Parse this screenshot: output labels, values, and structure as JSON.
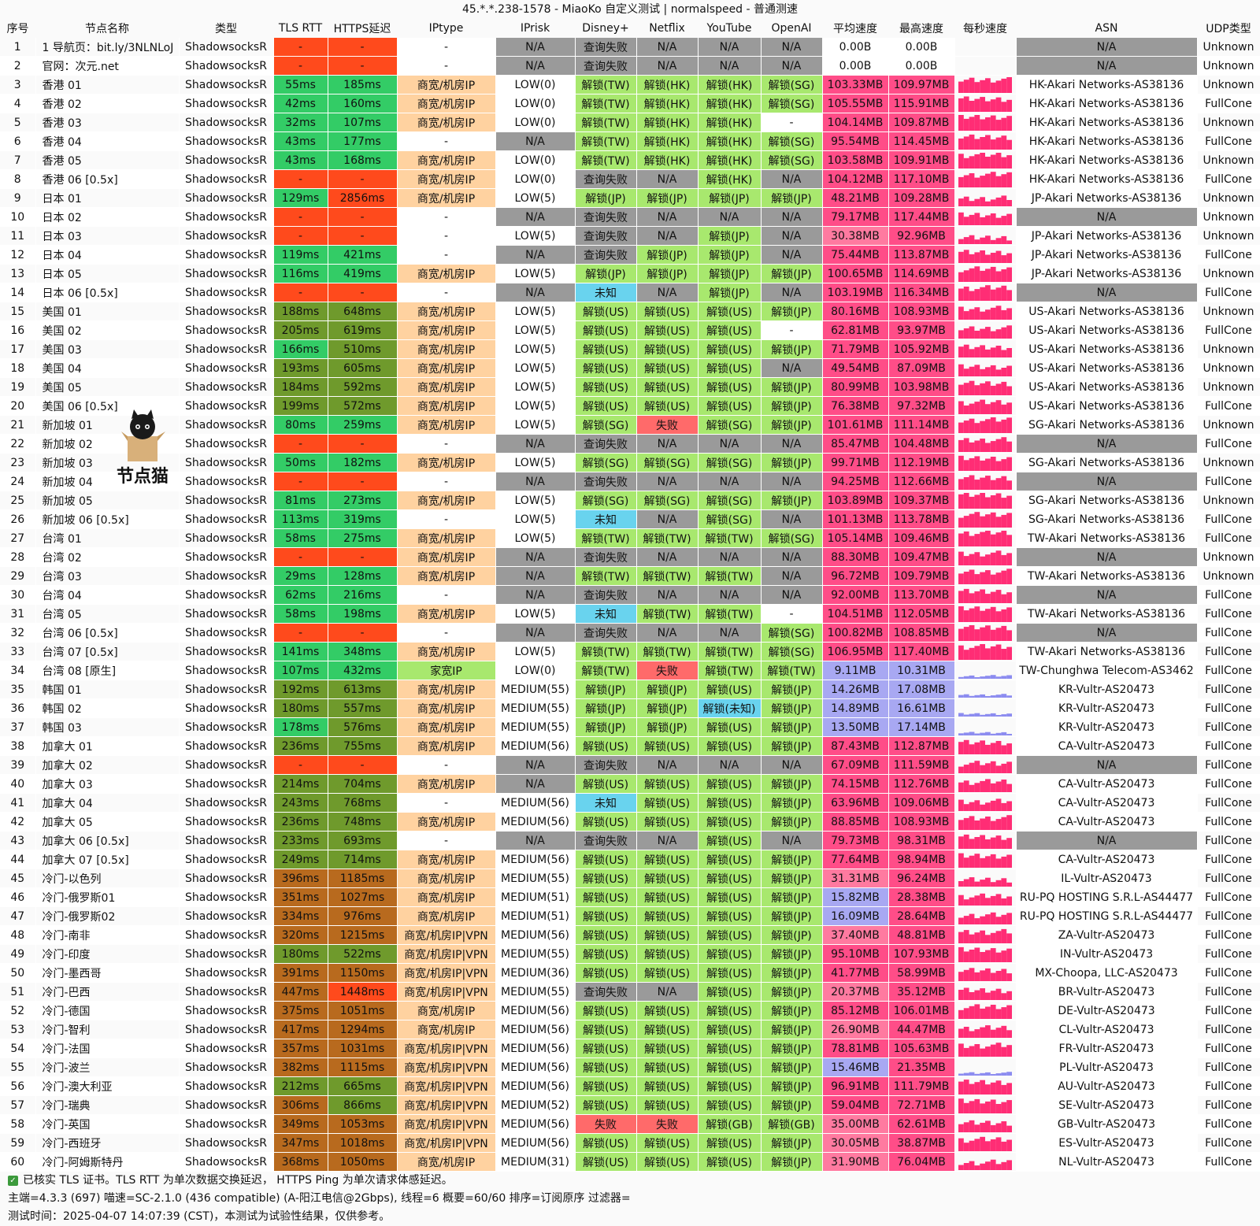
{
  "title": "45.*.*.238-1578 - MiaoKo 自定义测试 | normalspeed - 普通测速",
  "columns": [
    "序号",
    "节点名称",
    "类型",
    "TLS RTT",
    "HTTPS延迟",
    "IPtype",
    "IPrisk",
    "Disney+",
    "Netflix",
    "YouTube",
    "OpenAI",
    "平均速度",
    "最高速度",
    "每秒速度",
    "ASN",
    "UDP类型"
  ],
  "colors": {
    "red": "#ff4a1c",
    "green": "#33cc66",
    "olive": "#6f9a2c",
    "brown": "#b86a1e",
    "orange": "#ffd2a0",
    "gray": "#9a9a9a",
    "lightgreen": "#a8e86e",
    "pink": "#ff4d88",
    "blue": "#69d3ee",
    "lavender": "#a8a8f2",
    "lightred": "#ff6a6a",
    "white": "#ffffff",
    "lightpink": "#ff7aa0"
  },
  "mascot": {
    "label": "节点猫"
  },
  "rows": [
    [
      "1",
      "1 导航页：bit.ly/3NLNLoJ",
      "ShadowsocksR",
      "-",
      "-",
      "-",
      "N/A",
      "查询失败",
      "N/A",
      "N/A",
      "N/A",
      "0.00B",
      "0.00B",
      "",
      "N/A",
      "Unknown"
    ],
    [
      "2",
      "官网：次元.net",
      "ShadowsocksR",
      "-",
      "-",
      "-",
      "N/A",
      "查询失败",
      "N/A",
      "N/A",
      "N/A",
      "0.00B",
      "0.00B",
      "",
      "N/A",
      "Unknown"
    ],
    [
      "3",
      "香港 01",
      "ShadowsocksR",
      "55ms",
      "185ms",
      "商宽/机房IP",
      "LOW(0)",
      "解锁(TW)",
      "解锁(HK)",
      "解锁(HK)",
      "解锁(SG)",
      "103.33MB",
      "109.97MB",
      "",
      "HK-Akari Networks-AS38136",
      "Unknown"
    ],
    [
      "4",
      "香港 02",
      "ShadowsocksR",
      "42ms",
      "160ms",
      "商宽/机房IP",
      "LOW(0)",
      "解锁(TW)",
      "解锁(HK)",
      "解锁(HK)",
      "解锁(SG)",
      "105.55MB",
      "115.91MB",
      "",
      "HK-Akari Networks-AS38136",
      "FullCone"
    ],
    [
      "5",
      "香港 03",
      "ShadowsocksR",
      "32ms",
      "107ms",
      "商宽/机房IP",
      "LOW(0)",
      "解锁(TW)",
      "解锁(HK)",
      "解锁(HK)",
      "-",
      "104.14MB",
      "109.87MB",
      "",
      "HK-Akari Networks-AS38136",
      "Unknown"
    ],
    [
      "6",
      "香港 04",
      "ShadowsocksR",
      "43ms",
      "177ms",
      "-",
      "N/A",
      "解锁(TW)",
      "解锁(HK)",
      "解锁(HK)",
      "解锁(SG)",
      "95.54MB",
      "114.45MB",
      "",
      "HK-Akari Networks-AS38136",
      "FullCone"
    ],
    [
      "7",
      "香港 05",
      "ShadowsocksR",
      "43ms",
      "168ms",
      "商宽/机房IP",
      "LOW(0)",
      "解锁(TW)",
      "解锁(HK)",
      "解锁(HK)",
      "解锁(SG)",
      "103.58MB",
      "109.91MB",
      "",
      "HK-Akari Networks-AS38136",
      "Unknown"
    ],
    [
      "8",
      "香港 06 [0.5x]",
      "ShadowsocksR",
      "-",
      "-",
      "商宽/机房IP",
      "LOW(0)",
      "查询失败",
      "N/A",
      "解锁(HK)",
      "N/A",
      "104.12MB",
      "117.10MB",
      "",
      "HK-Akari Networks-AS38136",
      "FullCone"
    ],
    [
      "9",
      "日本 01",
      "ShadowsocksR",
      "129ms",
      "2856ms",
      "商宽/机房IP",
      "LOW(5)",
      "解锁(JP)",
      "解锁(JP)",
      "解锁(JP)",
      "解锁(JP)",
      "48.21MB",
      "109.28MB",
      "",
      "JP-Akari Networks-AS38136",
      "Unknown"
    ],
    [
      "10",
      "日本 02",
      "ShadowsocksR",
      "-",
      "-",
      "-",
      "N/A",
      "查询失败",
      "N/A",
      "N/A",
      "N/A",
      "79.17MB",
      "117.44MB",
      "",
      "N/A",
      "Unknown"
    ],
    [
      "11",
      "日本 03",
      "ShadowsocksR",
      "-",
      "-",
      "-",
      "LOW(5)",
      "查询失败",
      "N/A",
      "解锁(JP)",
      "N/A",
      "30.38MB",
      "92.96MB",
      "",
      "JP-Akari Networks-AS38136",
      "Unknown"
    ],
    [
      "12",
      "日本 04",
      "ShadowsocksR",
      "119ms",
      "421ms",
      "-",
      "N/A",
      "查询失败",
      "解锁(JP)",
      "解锁(JP)",
      "N/A",
      "75.44MB",
      "113.87MB",
      "",
      "JP-Akari Networks-AS38136",
      "FullCone"
    ],
    [
      "13",
      "日本 05",
      "ShadowsocksR",
      "116ms",
      "419ms",
      "商宽/机房IP",
      "LOW(5)",
      "解锁(JP)",
      "解锁(JP)",
      "解锁(JP)",
      "解锁(JP)",
      "100.65MB",
      "114.69MB",
      "",
      "JP-Akari Networks-AS38136",
      "Unknown"
    ],
    [
      "14",
      "日本 06 [0.5x]",
      "ShadowsocksR",
      "-",
      "-",
      "-",
      "N/A",
      "未知",
      "N/A",
      "解锁(JP)",
      "N/A",
      "103.19MB",
      "116.34MB",
      "",
      "N/A",
      "FullCone"
    ],
    [
      "15",
      "美国 01",
      "ShadowsocksR",
      "188ms",
      "648ms",
      "商宽/机房IP",
      "LOW(5)",
      "解锁(US)",
      "解锁(US)",
      "解锁(US)",
      "解锁(JP)",
      "80.16MB",
      "108.93MB",
      "",
      "US-Akari Networks-AS38136",
      "Unknown"
    ],
    [
      "16",
      "美国 02",
      "ShadowsocksR",
      "205ms",
      "619ms",
      "商宽/机房IP",
      "LOW(5)",
      "解锁(US)",
      "解锁(US)",
      "解锁(US)",
      "-",
      "62.81MB",
      "93.97MB",
      "",
      "US-Akari Networks-AS38136",
      "FullCone"
    ],
    [
      "17",
      "美国 03",
      "ShadowsocksR",
      "166ms",
      "510ms",
      "商宽/机房IP",
      "LOW(5)",
      "解锁(US)",
      "解锁(US)",
      "解锁(US)",
      "解锁(JP)",
      "71.79MB",
      "105.92MB",
      "",
      "US-Akari Networks-AS38136",
      "Unknown"
    ],
    [
      "18",
      "美国 04",
      "ShadowsocksR",
      "193ms",
      "605ms",
      "商宽/机房IP",
      "LOW(5)",
      "解锁(US)",
      "解锁(US)",
      "解锁(US)",
      "N/A",
      "49.54MB",
      "87.09MB",
      "",
      "US-Akari Networks-AS38136",
      "Unknown"
    ],
    [
      "19",
      "美国 05",
      "ShadowsocksR",
      "184ms",
      "592ms",
      "商宽/机房IP",
      "LOW(5)",
      "解锁(US)",
      "解锁(US)",
      "解锁(US)",
      "解锁(JP)",
      "80.99MB",
      "103.98MB",
      "",
      "US-Akari Networks-AS38136",
      "Unknown"
    ],
    [
      "20",
      "美国 06 [0.5x]",
      "ShadowsocksR",
      "199ms",
      "572ms",
      "商宽/机房IP",
      "LOW(5)",
      "解锁(US)",
      "解锁(US)",
      "解锁(US)",
      "解锁(JP)",
      "76.38MB",
      "97.32MB",
      "",
      "US-Akari Networks-AS38136",
      "FullCone"
    ],
    [
      "21",
      "新加坡 01",
      "ShadowsocksR",
      "80ms",
      "259ms",
      "商宽/机房IP",
      "LOW(5)",
      "解锁(SG)",
      "失败",
      "解锁(SG)",
      "解锁(JP)",
      "101.61MB",
      "111.14MB",
      "",
      "SG-Akari Networks-AS38136",
      "Unknown"
    ],
    [
      "22",
      "新加坡 02",
      "ShadowsocksR",
      "-",
      "-",
      "-",
      "N/A",
      "查询失败",
      "N/A",
      "N/A",
      "N/A",
      "85.47MB",
      "104.48MB",
      "",
      "N/A",
      "FullCone"
    ],
    [
      "23",
      "新加坡 03",
      "ShadowsocksR",
      "50ms",
      "182ms",
      "商宽/机房IP",
      "LOW(5)",
      "解锁(SG)",
      "解锁(SG)",
      "解锁(SG)",
      "解锁(JP)",
      "99.71MB",
      "112.19MB",
      "",
      "SG-Akari Networks-AS38136",
      "Unknown"
    ],
    [
      "24",
      "新加坡 04",
      "ShadowsocksR",
      "-",
      "-",
      "-",
      "N/A",
      "查询失败",
      "N/A",
      "N/A",
      "N/A",
      "94.25MB",
      "112.66MB",
      "",
      "N/A",
      "FullCone"
    ],
    [
      "25",
      "新加坡 05",
      "ShadowsocksR",
      "81ms",
      "273ms",
      "商宽/机房IP",
      "LOW(5)",
      "解锁(SG)",
      "解锁(SG)",
      "解锁(SG)",
      "解锁(JP)",
      "103.89MB",
      "109.37MB",
      "",
      "SG-Akari Networks-AS38136",
      "Unknown"
    ],
    [
      "26",
      "新加坡 06 [0.5x]",
      "ShadowsocksR",
      "113ms",
      "319ms",
      "-",
      "LOW(5)",
      "未知",
      "N/A",
      "解锁(SG)",
      "N/A",
      "101.13MB",
      "113.78MB",
      "",
      "SG-Akari Networks-AS38136",
      "FullCone"
    ],
    [
      "27",
      "台湾 01",
      "ShadowsocksR",
      "58ms",
      "275ms",
      "商宽/机房IP",
      "LOW(5)",
      "解锁(TW)",
      "解锁(TW)",
      "解锁(TW)",
      "解锁(SG)",
      "105.14MB",
      "109.46MB",
      "",
      "TW-Akari Networks-AS38136",
      "FullCone"
    ],
    [
      "28",
      "台湾 02",
      "ShadowsocksR",
      "-",
      "-",
      "商宽/机房IP",
      "N/A",
      "查询失败",
      "N/A",
      "N/A",
      "N/A",
      "88.30MB",
      "109.47MB",
      "",
      "N/A",
      "Unknown"
    ],
    [
      "29",
      "台湾 03",
      "ShadowsocksR",
      "29ms",
      "128ms",
      "商宽/机房IP",
      "N/A",
      "解锁(TW)",
      "解锁(TW)",
      "解锁(TW)",
      "N/A",
      "96.72MB",
      "109.79MB",
      "",
      "TW-Akari Networks-AS38136",
      "Unknown"
    ],
    [
      "30",
      "台湾 04",
      "ShadowsocksR",
      "62ms",
      "216ms",
      "-",
      "N/A",
      "查询失败",
      "N/A",
      "N/A",
      "N/A",
      "92.00MB",
      "113.70MB",
      "",
      "N/A",
      "FullCone"
    ],
    [
      "31",
      "台湾 05",
      "ShadowsocksR",
      "58ms",
      "198ms",
      "商宽/机房IP",
      "LOW(5)",
      "未知",
      "解锁(TW)",
      "解锁(TW)",
      "-",
      "104.51MB",
      "112.05MB",
      "",
      "TW-Akari Networks-AS38136",
      "FullCone"
    ],
    [
      "32",
      "台湾 06 [0.5x]",
      "ShadowsocksR",
      "-",
      "-",
      "-",
      "N/A",
      "查询失败",
      "N/A",
      "N/A",
      "解锁(SG)",
      "100.82MB",
      "108.85MB",
      "",
      "N/A",
      "FullCone"
    ],
    [
      "33",
      "台湾 07 [0.5x]",
      "ShadowsocksR",
      "141ms",
      "348ms",
      "商宽/机房IP",
      "LOW(5)",
      "解锁(TW)",
      "解锁(TW)",
      "解锁(TW)",
      "解锁(SG)",
      "106.95MB",
      "117.40MB",
      "",
      "TW-Akari Networks-AS38136",
      "FullCone"
    ],
    [
      "34",
      "台湾 08 [原生]",
      "ShadowsocksR",
      "107ms",
      "432ms",
      "家宽IP",
      "LOW(0)",
      "解锁(TW)",
      "失败",
      "解锁(TW)",
      "解锁(TW)",
      "9.11MB",
      "10.31MB",
      "",
      "TW-Chunghwa Telecom-AS3462",
      "FullCone"
    ],
    [
      "35",
      "韩国 01",
      "ShadowsocksR",
      "192ms",
      "613ms",
      "商宽/机房IP",
      "MEDIUM(55)",
      "解锁(JP)",
      "解锁(JP)",
      "解锁(US)",
      "解锁(JP)",
      "14.26MB",
      "17.08MB",
      "",
      "KR-Vultr-AS20473",
      "FullCone"
    ],
    [
      "36",
      "韩国 02",
      "ShadowsocksR",
      "180ms",
      "557ms",
      "商宽/机房IP",
      "MEDIUM(55)",
      "解锁(JP)",
      "解锁(JP)",
      "解锁(未知)",
      "解锁(JP)",
      "14.89MB",
      "16.61MB",
      "",
      "KR-Vultr-AS20473",
      "FullCone"
    ],
    [
      "37",
      "韩国 03",
      "ShadowsocksR",
      "178ms",
      "576ms",
      "商宽/机房IP",
      "MEDIUM(55)",
      "解锁(JP)",
      "解锁(JP)",
      "解锁(US)",
      "解锁(JP)",
      "13.50MB",
      "17.14MB",
      "",
      "KR-Vultr-AS20473",
      "FullCone"
    ],
    [
      "38",
      "加拿大 01",
      "ShadowsocksR",
      "236ms",
      "755ms",
      "商宽/机房IP",
      "MEDIUM(56)",
      "解锁(US)",
      "解锁(US)",
      "解锁(US)",
      "解锁(JP)",
      "87.43MB",
      "112.87MB",
      "",
      "CA-Vultr-AS20473",
      "FullCone"
    ],
    [
      "39",
      "加拿大 02",
      "ShadowsocksR",
      "-",
      "-",
      "-",
      "N/A",
      "查询失败",
      "N/A",
      "N/A",
      "N/A",
      "67.09MB",
      "111.59MB",
      "",
      "N/A",
      "FullCone"
    ],
    [
      "40",
      "加拿大 03",
      "ShadowsocksR",
      "214ms",
      "704ms",
      "商宽/机房IP",
      "N/A",
      "解锁(US)",
      "解锁(US)",
      "解锁(US)",
      "解锁(JP)",
      "74.15MB",
      "112.76MB",
      "",
      "CA-Vultr-AS20473",
      "FullCone"
    ],
    [
      "41",
      "加拿大 04",
      "ShadowsocksR",
      "243ms",
      "768ms",
      "-",
      "MEDIUM(56)",
      "未知",
      "解锁(US)",
      "解锁(US)",
      "解锁(JP)",
      "63.96MB",
      "109.06MB",
      "",
      "CA-Vultr-AS20473",
      "FullCone"
    ],
    [
      "42",
      "加拿大 05",
      "ShadowsocksR",
      "236ms",
      "748ms",
      "商宽/机房IP",
      "MEDIUM(56)",
      "解锁(US)",
      "解锁(US)",
      "解锁(US)",
      "解锁(JP)",
      "88.85MB",
      "108.93MB",
      "",
      "CA-Vultr-AS20473",
      "FullCone"
    ],
    [
      "43",
      "加拿大 06 [0.5x]",
      "ShadowsocksR",
      "233ms",
      "693ms",
      "-",
      "N/A",
      "查询失败",
      "N/A",
      "解锁(US)",
      "N/A",
      "79.73MB",
      "98.31MB",
      "",
      "N/A",
      "FullCone"
    ],
    [
      "44",
      "加拿大 07 [0.5x]",
      "ShadowsocksR",
      "249ms",
      "714ms",
      "商宽/机房IP",
      "MEDIUM(56)",
      "解锁(US)",
      "解锁(US)",
      "解锁(US)",
      "解锁(JP)",
      "77.64MB",
      "98.94MB",
      "",
      "CA-Vultr-AS20473",
      "FullCone"
    ],
    [
      "45",
      "冷门-以色列",
      "ShadowsocksR",
      "396ms",
      "1185ms",
      "商宽/机房IP",
      "MEDIUM(55)",
      "解锁(US)",
      "解锁(US)",
      "解锁(US)",
      "解锁(JP)",
      "31.31MB",
      "96.24MB",
      "",
      "IL-Vultr-AS20473",
      "FullCone"
    ],
    [
      "46",
      "冷门-俄罗斯01",
      "ShadowsocksR",
      "351ms",
      "1027ms",
      "商宽/机房IP",
      "MEDIUM(51)",
      "解锁(US)",
      "解锁(US)",
      "解锁(US)",
      "解锁(JP)",
      "15.82MB",
      "28.38MB",
      "",
      "RU-PQ HOSTING S.R.L-AS44477",
      "FullCone"
    ],
    [
      "47",
      "冷门-俄罗斯02",
      "ShadowsocksR",
      "334ms",
      "976ms",
      "商宽/机房IP",
      "MEDIUM(51)",
      "解锁(US)",
      "解锁(US)",
      "解锁(US)",
      "解锁(JP)",
      "16.09MB",
      "28.64MB",
      "",
      "RU-PQ HOSTING S.R.L-AS44477",
      "FullCone"
    ],
    [
      "48",
      "冷门-南非",
      "ShadowsocksR",
      "320ms",
      "1215ms",
      "商宽/机房IP|VPN",
      "MEDIUM(56)",
      "解锁(US)",
      "解锁(US)",
      "解锁(US)",
      "解锁(JP)",
      "37.40MB",
      "48.81MB",
      "",
      "ZA-Vultr-AS20473",
      "FullCone"
    ],
    [
      "49",
      "冷门-印度",
      "ShadowsocksR",
      "180ms",
      "522ms",
      "商宽/机房IP|VPN",
      "MEDIUM(55)",
      "解锁(US)",
      "解锁(US)",
      "解锁(US)",
      "解锁(JP)",
      "95.10MB",
      "107.93MB",
      "",
      "IN-Vultr-AS20473",
      "FullCone"
    ],
    [
      "50",
      "冷门-墨西哥",
      "ShadowsocksR",
      "391ms",
      "1150ms",
      "商宽/机房IP|VPN",
      "MEDIUM(36)",
      "解锁(US)",
      "解锁(US)",
      "解锁(US)",
      "解锁(JP)",
      "41.77MB",
      "58.99MB",
      "",
      "MX-Choopa, LLC-AS20473",
      "FullCone"
    ],
    [
      "51",
      "冷门-巴西",
      "ShadowsocksR",
      "447ms",
      "1448ms",
      "商宽/机房IP|VPN",
      "MEDIUM(55)",
      "查询失败",
      "N/A",
      "解锁(US)",
      "解锁(JP)",
      "20.37MB",
      "35.12MB",
      "",
      "BR-Vultr-AS20473",
      "FullCone"
    ],
    [
      "52",
      "冷门-德国",
      "ShadowsocksR",
      "375ms",
      "1051ms",
      "商宽/机房IP",
      "MEDIUM(56)",
      "解锁(US)",
      "解锁(US)",
      "解锁(US)",
      "解锁(JP)",
      "85.12MB",
      "106.01MB",
      "",
      "DE-Vultr-AS20473",
      "FullCone"
    ],
    [
      "53",
      "冷门-智利",
      "ShadowsocksR",
      "417ms",
      "1294ms",
      "商宽/机房IP",
      "MEDIUM(56)",
      "解锁(US)",
      "解锁(US)",
      "解锁(US)",
      "解锁(JP)",
      "26.90MB",
      "44.47MB",
      "",
      "CL-Vultr-AS20473",
      "FullCone"
    ],
    [
      "54",
      "冷门-法国",
      "ShadowsocksR",
      "357ms",
      "1031ms",
      "商宽/机房IP|VPN",
      "MEDIUM(56)",
      "解锁(US)",
      "解锁(US)",
      "解锁(US)",
      "解锁(JP)",
      "78.81MB",
      "105.63MB",
      "",
      "FR-Vultr-AS20473",
      "FullCone"
    ],
    [
      "55",
      "冷门-波兰",
      "ShadowsocksR",
      "382ms",
      "1115ms",
      "商宽/机房IP|VPN",
      "MEDIUM(56)",
      "解锁(US)",
      "解锁(US)",
      "解锁(US)",
      "解锁(JP)",
      "15.46MB",
      "21.35MB",
      "",
      "PL-Vultr-AS20473",
      "FullCone"
    ],
    [
      "56",
      "冷门-澳大利亚",
      "ShadowsocksR",
      "212ms",
      "665ms",
      "商宽/机房IP|VPN",
      "MEDIUM(56)",
      "解锁(US)",
      "解锁(US)",
      "解锁(US)",
      "解锁(JP)",
      "96.91MB",
      "111.79MB",
      "",
      "AU-Vultr-AS20473",
      "FullCone"
    ],
    [
      "57",
      "冷门-瑞典",
      "ShadowsocksR",
      "306ms",
      "866ms",
      "商宽/机房IP|VPN",
      "MEDIUM(52)",
      "解锁(US)",
      "解锁(US)",
      "解锁(US)",
      "解锁(JP)",
      "59.04MB",
      "72.71MB",
      "",
      "SE-Vultr-AS20473",
      "FullCone"
    ],
    [
      "58",
      "冷门-英国",
      "ShadowsocksR",
      "349ms",
      "1053ms",
      "商宽/机房IP|VPN",
      "MEDIUM(56)",
      "失败",
      "失败",
      "解锁(GB)",
      "解锁(GB)",
      "35.00MB",
      "62.61MB",
      "",
      "GB-Vultr-AS20473",
      "FullCone"
    ],
    [
      "59",
      "冷门-西班牙",
      "ShadowsocksR",
      "347ms",
      "1018ms",
      "商宽/机房IP|VPN",
      "MEDIUM(56)",
      "解锁(US)",
      "解锁(US)",
      "解锁(US)",
      "解锁(JP)",
      "30.05MB",
      "38.87MB",
      "",
      "ES-Vultr-AS20473",
      "FullCone"
    ],
    [
      "60",
      "冷门-阿姆斯特丹",
      "ShadowsocksR",
      "368ms",
      "1050ms",
      "商宽/机房IP",
      "MEDIUM(31)",
      "解锁(US)",
      "解锁(US)",
      "解锁(US)",
      "解锁(JP)",
      "31.90MB",
      "76.04MB",
      "",
      "NL-Vultr-AS20473",
      "FullCone"
    ]
  ],
  "footer": {
    "line1": "已核实 TLS 证书。TLS RTT 为单次数据交换延迟， HTTPS Ping 为单次请求体感延迟。",
    "line2": "主端=4.3.3 (697) 喵速=SC-2.1.0 (436 compatible) (A-阳江电信@2Gbps), 线程=6 概要=60/60 排序=订阅原序 过滤器=",
    "line3": "测试时间：2025-04-07 14:07:39 (CST)，本测试为试验性结果，仅供参考。"
  }
}
